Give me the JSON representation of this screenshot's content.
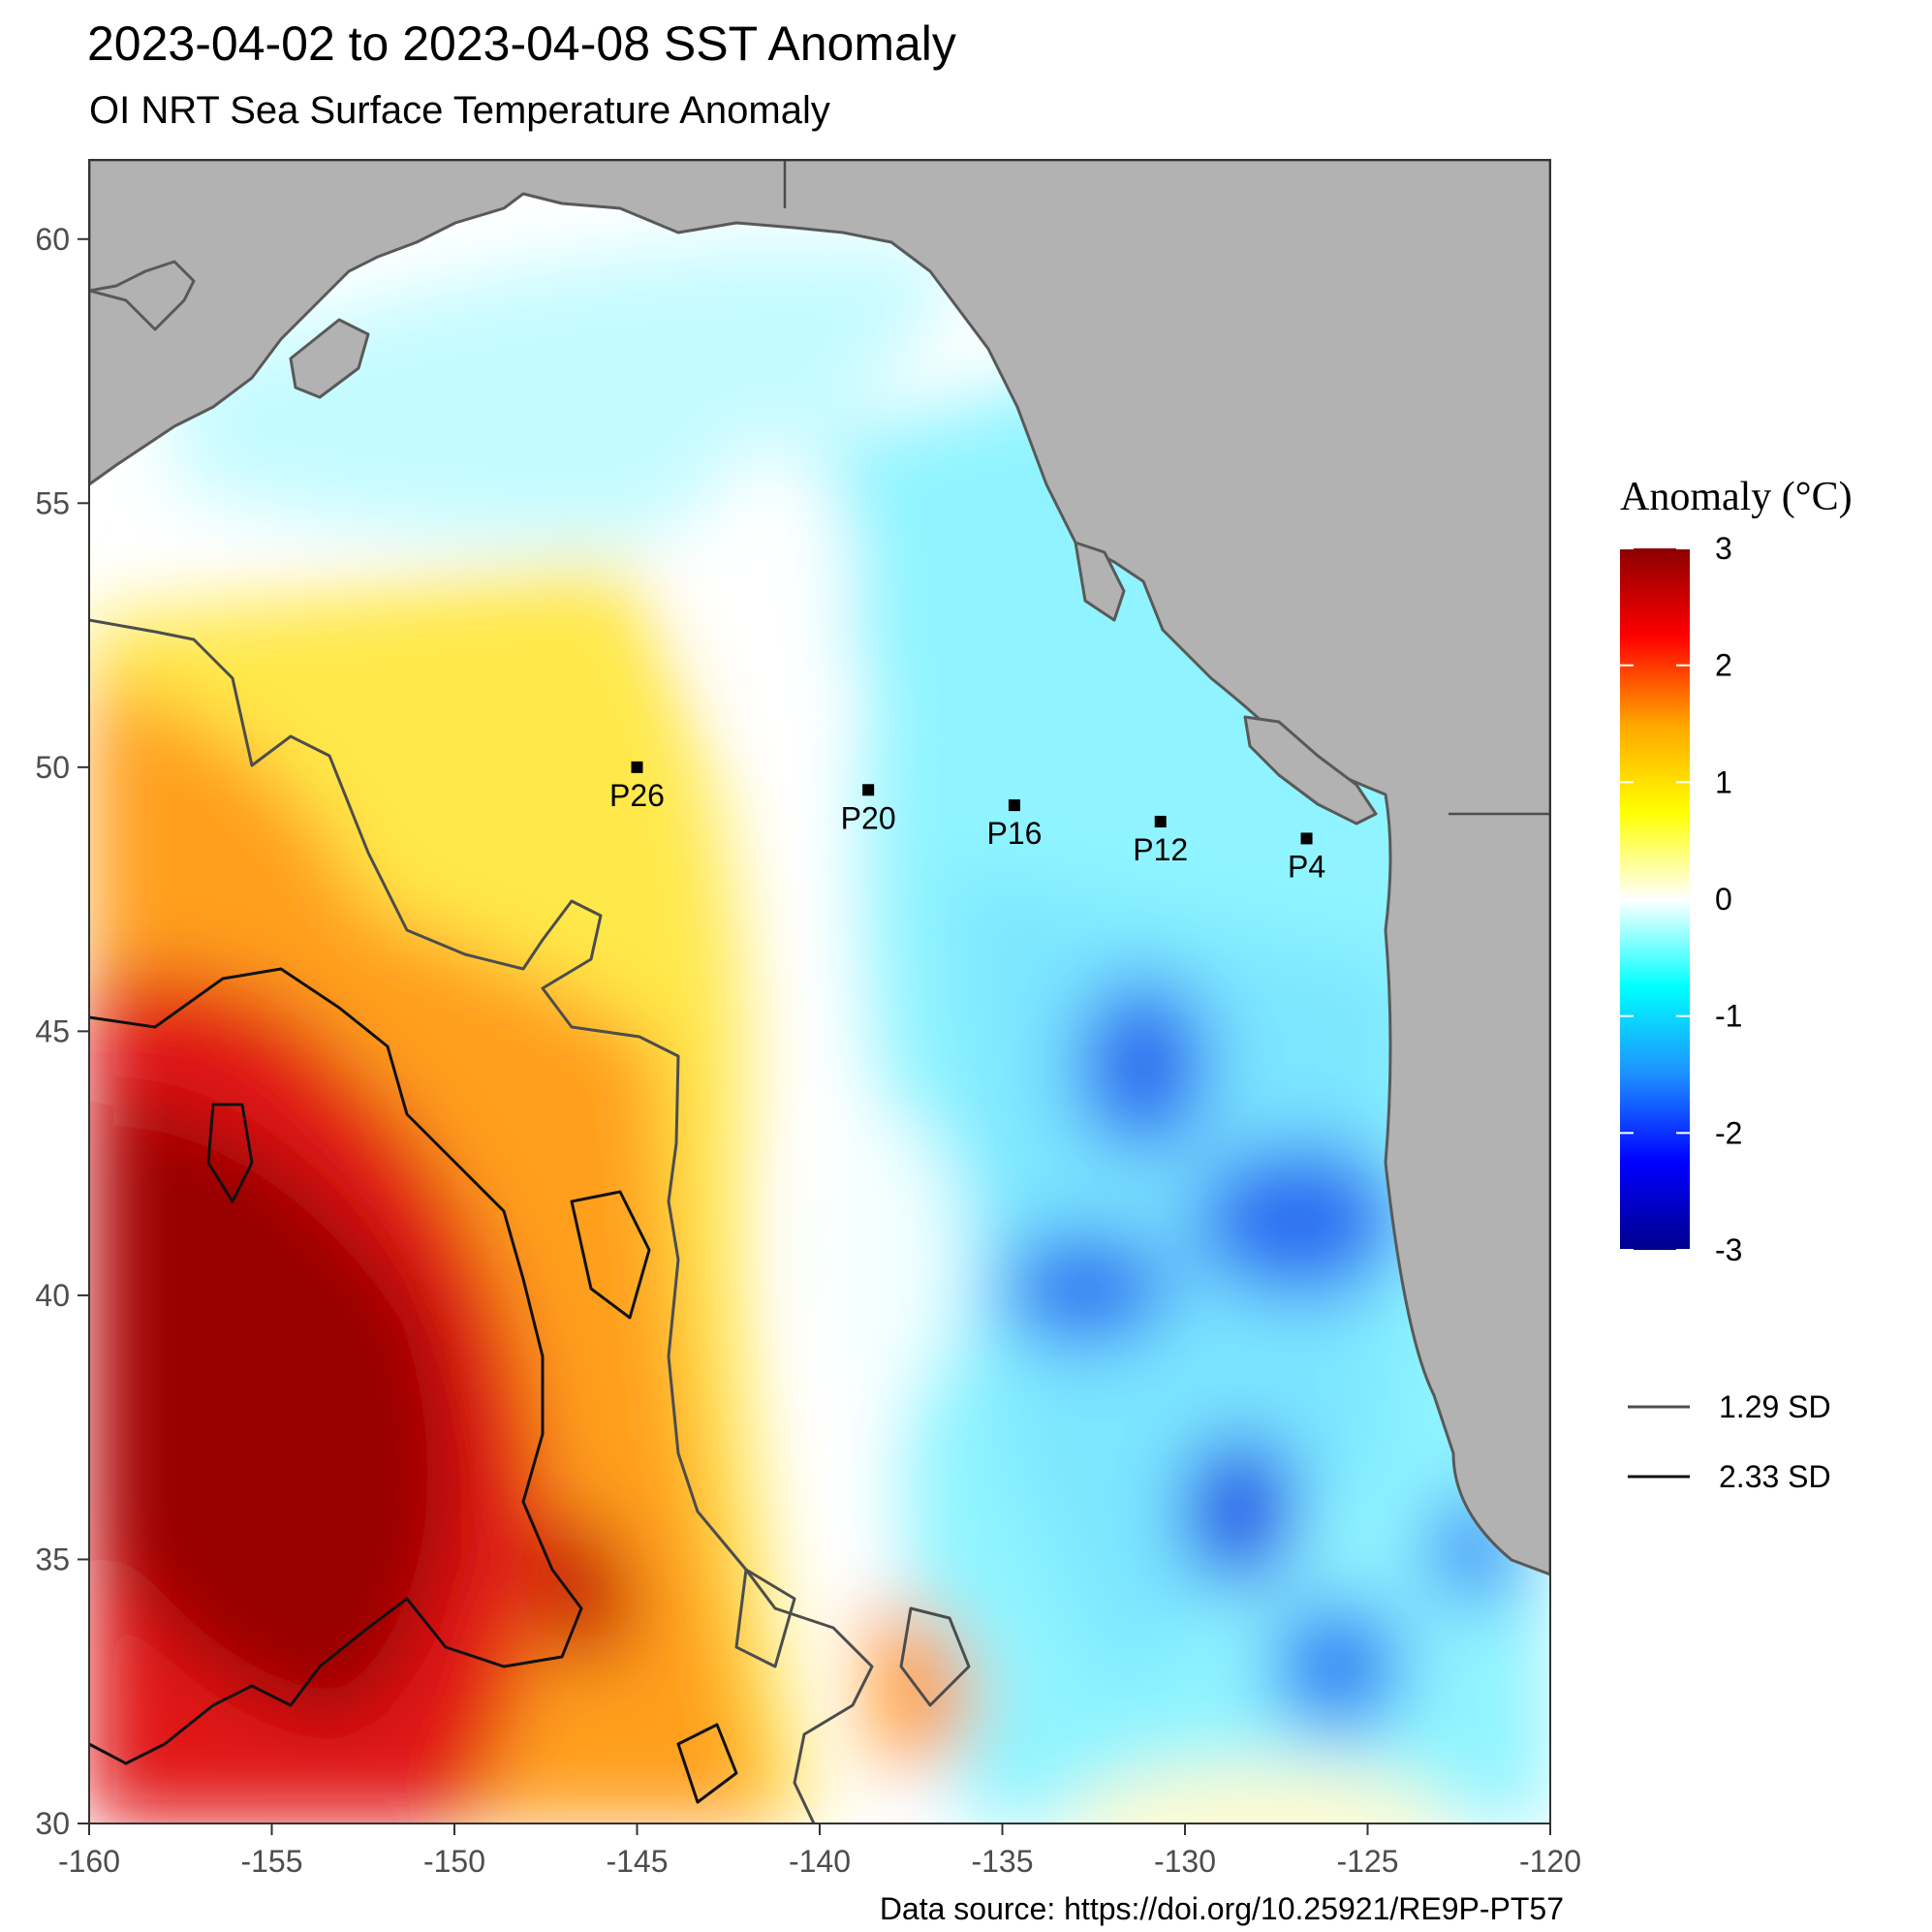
{
  "title": "2023-04-02 to 2023-04-08 SST Anomaly",
  "subtitle": "OI NRT Sea Surface Temperature Anomaly",
  "source": "Data source: https://doi.org/10.25921/RE9P-PT57",
  "colors": {
    "land": "#b2b2b2",
    "coast": "#595959",
    "border": "#4d4d4d",
    "contour_1_29": "#4d4d4d",
    "contour_2_33": "#111111",
    "scale": [
      "#00008b",
      "#0000ff",
      "#1e90ff",
      "#00ffff",
      "#ffffff",
      "#ffff00",
      "#ffa500",
      "#ff0000",
      "#8b0000"
    ]
  },
  "map": {
    "lon_range": [
      -160,
      -120
    ],
    "lat_range": [
      30,
      61.5
    ],
    "x_ticks": [
      "-160",
      "-155",
      "-150",
      "-145",
      "-140",
      "-135",
      "-130",
      "-125",
      "-120"
    ],
    "x_tick_values": [
      -160,
      -155,
      -150,
      -145,
      -140,
      -135,
      -130,
      -125,
      -120
    ],
    "y_ticks": [
      "30",
      "35",
      "40",
      "45",
      "50",
      "55",
      "60"
    ],
    "y_tick_values": [
      30,
      35,
      40,
      45,
      50,
      55,
      60
    ]
  },
  "stations": [
    {
      "name": "P26",
      "lon": -145.0,
      "lat": 50.0
    },
    {
      "name": "P20",
      "lon": -138.67,
      "lat": 49.57
    },
    {
      "name": "P16",
      "lon": -134.67,
      "lat": 49.28
    },
    {
      "name": "P12",
      "lon": -130.67,
      "lat": 48.97
    },
    {
      "name": "P4",
      "lon": -126.67,
      "lat": 48.65
    }
  ],
  "legend": {
    "title": "Anomaly (°C)",
    "ticks": [
      "3",
      "2",
      "1",
      "0",
      "-1",
      "-2",
      "-3"
    ],
    "tick_values": [
      3,
      2,
      1,
      0,
      -1,
      -2,
      -3
    ],
    "contours": [
      {
        "label": "1.29 SD",
        "color": "#4d4d4d"
      },
      {
        "label": "2.33 SD",
        "color": "#111111"
      }
    ]
  }
}
